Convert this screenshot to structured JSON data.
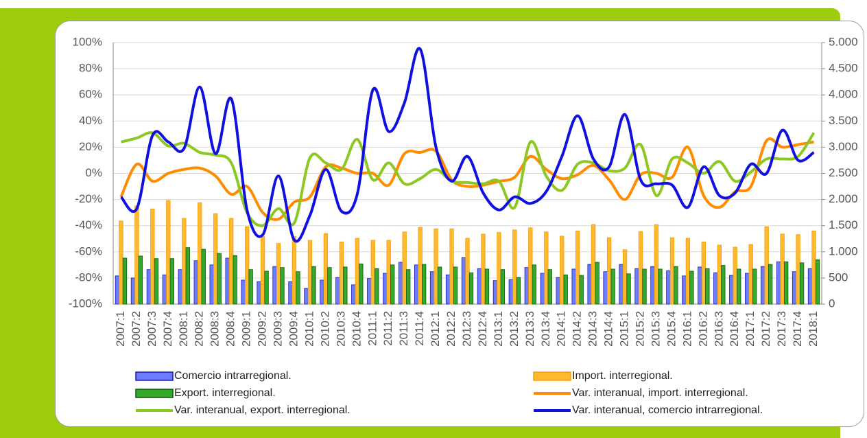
{
  "chart_data": {
    "type": "bar",
    "categories": [
      "2007:1",
      "2007:2",
      "2007:3",
      "2007:4",
      "2008:1",
      "2008:2",
      "2008:3",
      "2008:4",
      "2009:1",
      "2009:2",
      "2009:3",
      "2009:4",
      "2010:1",
      "2010:2",
      "2010:3",
      "2010:4",
      "2011:1",
      "2011:2",
      "2011:3",
      "2011:4",
      "2012:1",
      "2012:2",
      "2012:3",
      "2012:4",
      "2013:1",
      "2013:2",
      "2013:3",
      "2013:4",
      "2014:1",
      "2014:2",
      "2014:3",
      "2014:4",
      "2015:1",
      "2015:2",
      "2015:3",
      "2015:4",
      "2016:1",
      "2016:2",
      "2016:3",
      "2016:4",
      "2017:1",
      "2017:2",
      "2017:3",
      "2017:4",
      "2018:1"
    ],
    "series": [
      {
        "name": "Comercio intrarregional.",
        "type": "bar",
        "axis": "y2",
        "color": "#6b7cff",
        "values": [
          540,
          500,
          660,
          560,
          660,
          830,
          750,
          880,
          460,
          430,
          720,
          430,
          300,
          460,
          510,
          370,
          490,
          590,
          800,
          750,
          620,
          560,
          890,
          680,
          450,
          470,
          700,
          590,
          510,
          670,
          760,
          620,
          760,
          680,
          720,
          640,
          540,
          710,
          600,
          550,
          590,
          720,
          810,
          620,
          680
        ]
      },
      {
        "name": "Import. interregional.",
        "type": "bar",
        "axis": "y2",
        "color": "#ffb830",
        "values": [
          1590,
          1880,
          1820,
          1980,
          1640,
          1940,
          1730,
          1640,
          1480,
          1290,
          1160,
          1290,
          1220,
          1350,
          1190,
          1260,
          1220,
          1220,
          1380,
          1470,
          1440,
          1440,
          1260,
          1340,
          1370,
          1420,
          1460,
          1380,
          1300,
          1400,
          1520,
          1270,
          1040,
          1390,
          1520,
          1270,
          1260,
          1190,
          1130,
          1090,
          1140,
          1480,
          1340,
          1330,
          1400
        ]
      },
      {
        "name": "Export. interregional.",
        "type": "bar",
        "axis": "y2",
        "color": "#36a82c",
        "values": [
          880,
          920,
          870,
          870,
          1080,
          1050,
          970,
          930,
          660,
          630,
          700,
          620,
          720,
          700,
          710,
          770,
          680,
          750,
          660,
          760,
          710,
          710,
          600,
          670,
          660,
          510,
          750,
          660,
          560,
          550,
          800,
          670,
          580,
          670,
          670,
          720,
          630,
          680,
          740,
          670,
          670,
          760,
          810,
          790,
          850
        ]
      },
      {
        "name": "Var. interanual, import. interregional.",
        "type": "line",
        "color": "#ff8c00",
        "values": [
          -18,
          7,
          -6,
          0,
          3,
          4,
          -2,
          -16,
          -10,
          -30,
          -35,
          -22,
          -18,
          5,
          4,
          0,
          0,
          -9,
          15,
          16,
          17,
          -5,
          -10,
          -9,
          -6,
          -3,
          13,
          3,
          -4,
          -1,
          6,
          -5,
          -20,
          -1,
          0,
          -3,
          20,
          -17,
          -26,
          -14,
          -10,
          25,
          20,
          22,
          24
        ]
      },
      {
        "name": "Var. interanual, export. interregional.",
        "type": "line",
        "color": "#8cc820",
        "values": [
          24,
          27,
          31,
          21,
          23,
          16,
          14,
          8,
          -30,
          -40,
          -27,
          -38,
          12,
          8,
          3,
          26,
          -5,
          8,
          -8,
          -4,
          3,
          -6,
          -7,
          -8,
          -6,
          -26,
          24,
          -2,
          -13,
          7,
          8,
          2,
          4,
          22,
          -17,
          11,
          8,
          0,
          9,
          -6,
          1,
          11,
          11,
          13,
          31
        ]
      },
      {
        "name": "Var. interanual, comercio intrarregional.",
        "type": "line",
        "color": "#1010e0",
        "values": [
          -18,
          -27,
          29,
          24,
          19,
          66,
          15,
          57,
          -28,
          -47,
          -2,
          -51,
          -32,
          3,
          -29,
          -16,
          64,
          32,
          54,
          95,
          20,
          -6,
          13,
          -15,
          -28,
          -18,
          -23,
          -14,
          13,
          44,
          11,
          5,
          45,
          -5,
          -8,
          -9,
          -26,
          5,
          -17,
          -15,
          7,
          0,
          33,
          10,
          16
        ]
      }
    ],
    "ylim": [
      -100,
      100
    ],
    "yticks": [
      {
        "value": -100,
        "label": "-100%"
      },
      {
        "value": -80,
        "label": "-80%"
      },
      {
        "value": -60,
        "label": "-60%"
      },
      {
        "value": -40,
        "label": "-40%"
      },
      {
        "value": -20,
        "label": "-20%"
      },
      {
        "value": 0,
        "label": "0%"
      },
      {
        "value": 20,
        "label": "20%"
      },
      {
        "value": 40,
        "label": "40%"
      },
      {
        "value": 60,
        "label": "60%"
      },
      {
        "value": 80,
        "label": "80%"
      },
      {
        "value": 100,
        "label": "100%"
      }
    ],
    "y2lim": [
      0,
      5000
    ],
    "y2ticks": [
      0,
      500,
      {
        "value": 1000,
        "label": "1.000"
      },
      {
        "value": 1500,
        "label": "1.500"
      },
      {
        "value": 2000,
        "label": "2.000"
      },
      {
        "value": 2500,
        "label": "2.500"
      },
      {
        "value": 3000,
        "label": "3.000"
      },
      {
        "value": 3500,
        "label": "3.500"
      },
      {
        "value": 4000,
        "label": "4.000"
      },
      {
        "value": 4500,
        "label": "4.500"
      },
      {
        "value": 5000,
        "label": "5.000"
      }
    ],
    "grid": true
  }
}
